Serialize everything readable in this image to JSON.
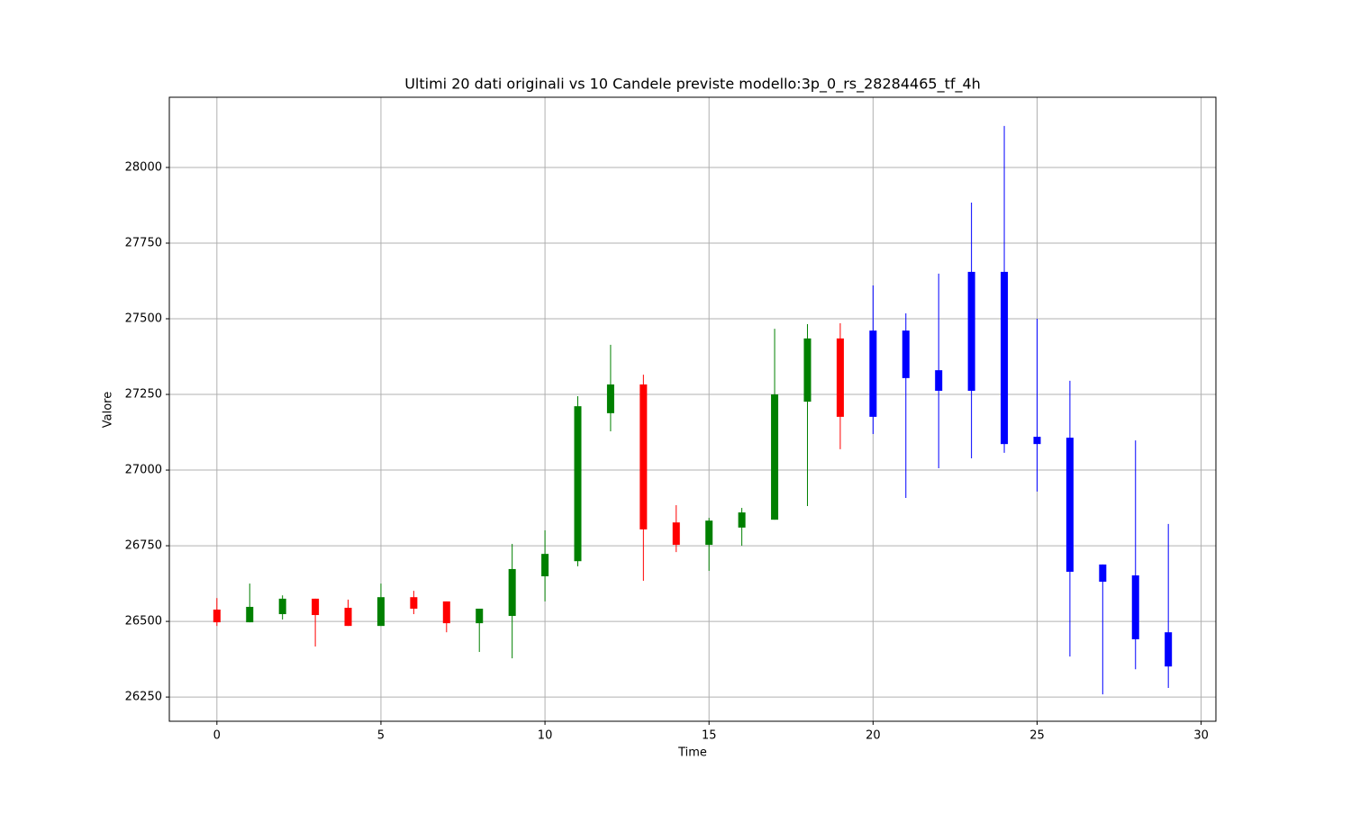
{
  "chart_data": {
    "type": "candlestick",
    "title": "Ultimi 20 dati originali vs 10 Candele previste modello:3p_0_rs_28284465_tf_4h",
    "x_label": "Time",
    "y_label": "Valore",
    "xlim": [
      -1.45,
      30.45
    ],
    "ylim": [
      26170,
      28232
    ],
    "xticks": [
      0,
      5,
      10,
      15,
      20,
      25,
      30
    ],
    "yticks": [
      26250,
      26500,
      26750,
      27000,
      27250,
      27500,
      27750,
      28000
    ],
    "grid": true,
    "series": [
      {
        "color_up": "green",
        "color_down": "red",
        "x": [
          0,
          1,
          2,
          3,
          4,
          5,
          6,
          7,
          8,
          9,
          10,
          11,
          12,
          13,
          14,
          15,
          16,
          17,
          18,
          19
        ],
        "open": [
          26539,
          26497,
          26524,
          26575,
          26545,
          26485,
          26580,
          26566,
          26494,
          26518,
          26649,
          26699,
          27188,
          27283,
          26827,
          26753,
          26810,
          26836,
          27226,
          27435
        ],
        "high": [
          26577,
          26625,
          26586,
          26575,
          26572,
          26625,
          26601,
          26566,
          26542,
          26756,
          26801,
          27244,
          27414,
          27315,
          26884,
          26842,
          26875,
          27467,
          27482,
          27485
        ],
        "low": [
          26485,
          26497,
          26506,
          26417,
          26485,
          26485,
          26524,
          26464,
          26399,
          26378,
          26566,
          26682,
          27128,
          26634,
          26729,
          26667,
          26750,
          26836,
          26881,
          27069
        ],
        "close": [
          26497,
          26548,
          26575,
          26521,
          26485,
          26580,
          26542,
          26494,
          26542,
          26673,
          26723,
          27211,
          27283,
          26804,
          26753,
          26833,
          26860,
          27250,
          27435,
          27176
        ]
      },
      {
        "color": "blue",
        "x": [
          20,
          21,
          22,
          23,
          24,
          25,
          26,
          27,
          28,
          29
        ],
        "open": [
          27176,
          27461,
          27330,
          27262,
          27655,
          27110,
          27107,
          26688,
          26652,
          26464
        ],
        "high": [
          27610,
          27518,
          27649,
          27884,
          28137,
          27500,
          27295,
          26688,
          27098,
          26822
        ],
        "low": [
          27119,
          26908,
          27006,
          27039,
          27057,
          26929,
          26384,
          26259,
          26342,
          26280
        ],
        "close": [
          27461,
          27304,
          27262,
          27655,
          27086,
          27086,
          26664,
          26631,
          26441,
          26351
        ]
      }
    ]
  }
}
